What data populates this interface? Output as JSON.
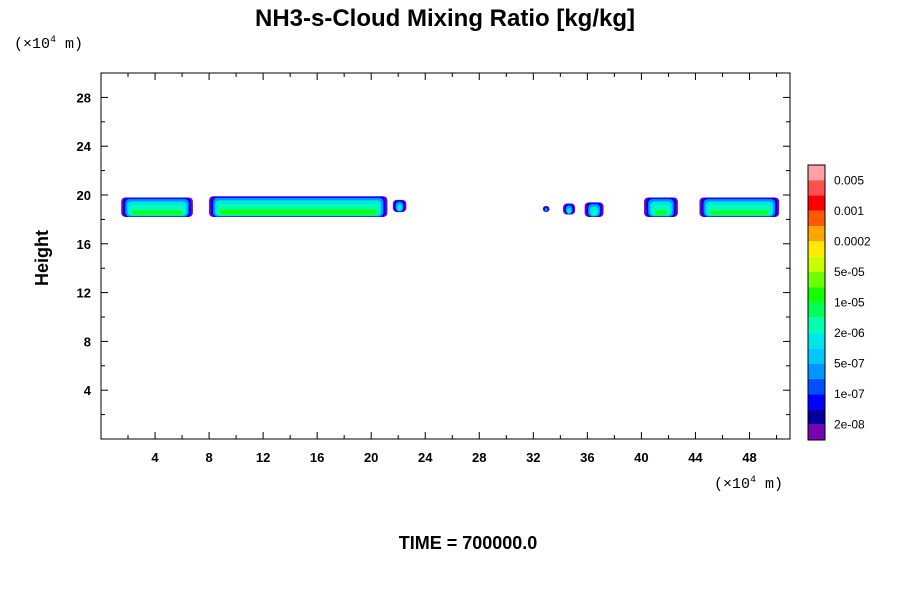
{
  "chart_data": {
    "type": "heatmap",
    "title": "NH3-s-Cloud Mixing Ratio [kg/kg]",
    "ylabel": "Height",
    "xlabel": "",
    "x_unit": {
      "prefix": "(×10",
      "exp": "4",
      "suffix": " m)"
    },
    "y_unit": {
      "prefix": "(×10",
      "exp": "4",
      "suffix": " m)"
    },
    "xlim": [
      0,
      51
    ],
    "ylim": [
      0,
      30
    ],
    "x_ticks": [
      4,
      8,
      12,
      16,
      20,
      24,
      28,
      32,
      36,
      40,
      44,
      48
    ],
    "x_tick_labels": [
      "4",
      "8",
      "12",
      "16",
      "20",
      "24",
      "28",
      "32",
      "36",
      "40",
      "44",
      "48"
    ],
    "y_ticks": [
      4,
      8,
      12,
      16,
      20,
      24,
      28
    ],
    "y_tick_labels": [
      "4",
      "8",
      "12",
      "16",
      "20",
      "24",
      "28"
    ],
    "colorbar": {
      "colors": [
        "#ff9fa8",
        "#ff4f4f",
        "#ff0000",
        "#ff5a00",
        "#ffa500",
        "#ffea00",
        "#c8ff00",
        "#6eff00",
        "#14ff00",
        "#00ff5a",
        "#00ffb4",
        "#00e6e6",
        "#00c8ff",
        "#0096ff",
        "#0050ff",
        "#0000ff",
        "#00009c",
        "#7a00b4"
      ],
      "labels": [
        "0.005",
        "0.001",
        "0.0002",
        "5e-05",
        "1e-05",
        "2e-06",
        "5e-07",
        "1e-07",
        "2e-08"
      ]
    },
    "cloud_regions": [
      {
        "x_start": 1.5,
        "x_end": 6.8,
        "y_base": 18.2,
        "y_top": 19.8
      },
      {
        "x_start": 8.0,
        "x_end": 21.2,
        "y_base": 18.2,
        "y_top": 19.9
      },
      {
        "x_start": 21.6,
        "x_end": 22.6,
        "y_base": 18.6,
        "y_top": 19.6
      },
      {
        "x_start": 32.7,
        "x_end": 33.2,
        "y_base": 18.6,
        "y_top": 19.1
      },
      {
        "x_start": 34.2,
        "x_end": 35.1,
        "y_base": 18.4,
        "y_top": 19.3
      },
      {
        "x_start": 35.8,
        "x_end": 37.2,
        "y_base": 18.2,
        "y_top": 19.4
      },
      {
        "x_start": 40.2,
        "x_end": 42.7,
        "y_base": 18.2,
        "y_top": 19.8
      },
      {
        "x_start": 44.3,
        "x_end": 50.2,
        "y_base": 18.2,
        "y_top": 19.8
      }
    ]
  },
  "footer": {
    "time_label": "TIME = 700000.0"
  }
}
